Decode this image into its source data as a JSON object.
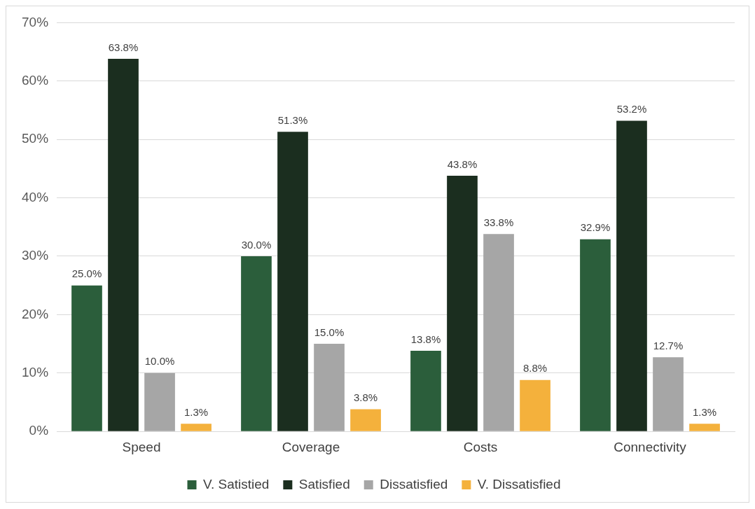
{
  "chart_data": {
    "type": "bar",
    "categories": [
      "Speed",
      "Coverage",
      "Costs",
      "Connectivity"
    ],
    "series": [
      {
        "name": "V. Satistied",
        "color": "#2b5e3b",
        "values": [
          25.0,
          30.0,
          13.8,
          32.9
        ],
        "value_labels": [
          "25.0%",
          "30.0%",
          "13.8%",
          "32.9%"
        ]
      },
      {
        "name": "Satisfied",
        "color": "#1b2e1f",
        "values": [
          63.8,
          51.3,
          43.8,
          53.2
        ],
        "value_labels": [
          "63.8%",
          "51.3%",
          "43.8%",
          "53.2%"
        ]
      },
      {
        "name": "Dissatisfied",
        "color": "#a6a6a6",
        "values": [
          10.0,
          15.0,
          33.8,
          12.7
        ],
        "value_labels": [
          "10.0%",
          "15.0%",
          "33.8%",
          "12.7%"
        ]
      },
      {
        "name": "V. Dissatisfied",
        "color": "#f4b13c",
        "values": [
          1.3,
          3.8,
          8.8,
          1.3
        ],
        "value_labels": [
          "1.3%",
          "3.8%",
          "8.8%",
          "1.3%"
        ]
      }
    ],
    "ylim": [
      0,
      70
    ],
    "yticks": [
      {
        "value": 0,
        "label": "0%"
      },
      {
        "value": 10,
        "label": "10%"
      },
      {
        "value": 20,
        "label": "20%"
      },
      {
        "value": 30,
        "label": "30%"
      },
      {
        "value": 40,
        "label": "40%"
      },
      {
        "value": 50,
        "label": "50%"
      },
      {
        "value": 60,
        "label": "60%"
      },
      {
        "value": 70,
        "label": "70%"
      }
    ],
    "grid": "y",
    "legend": "bottom"
  }
}
